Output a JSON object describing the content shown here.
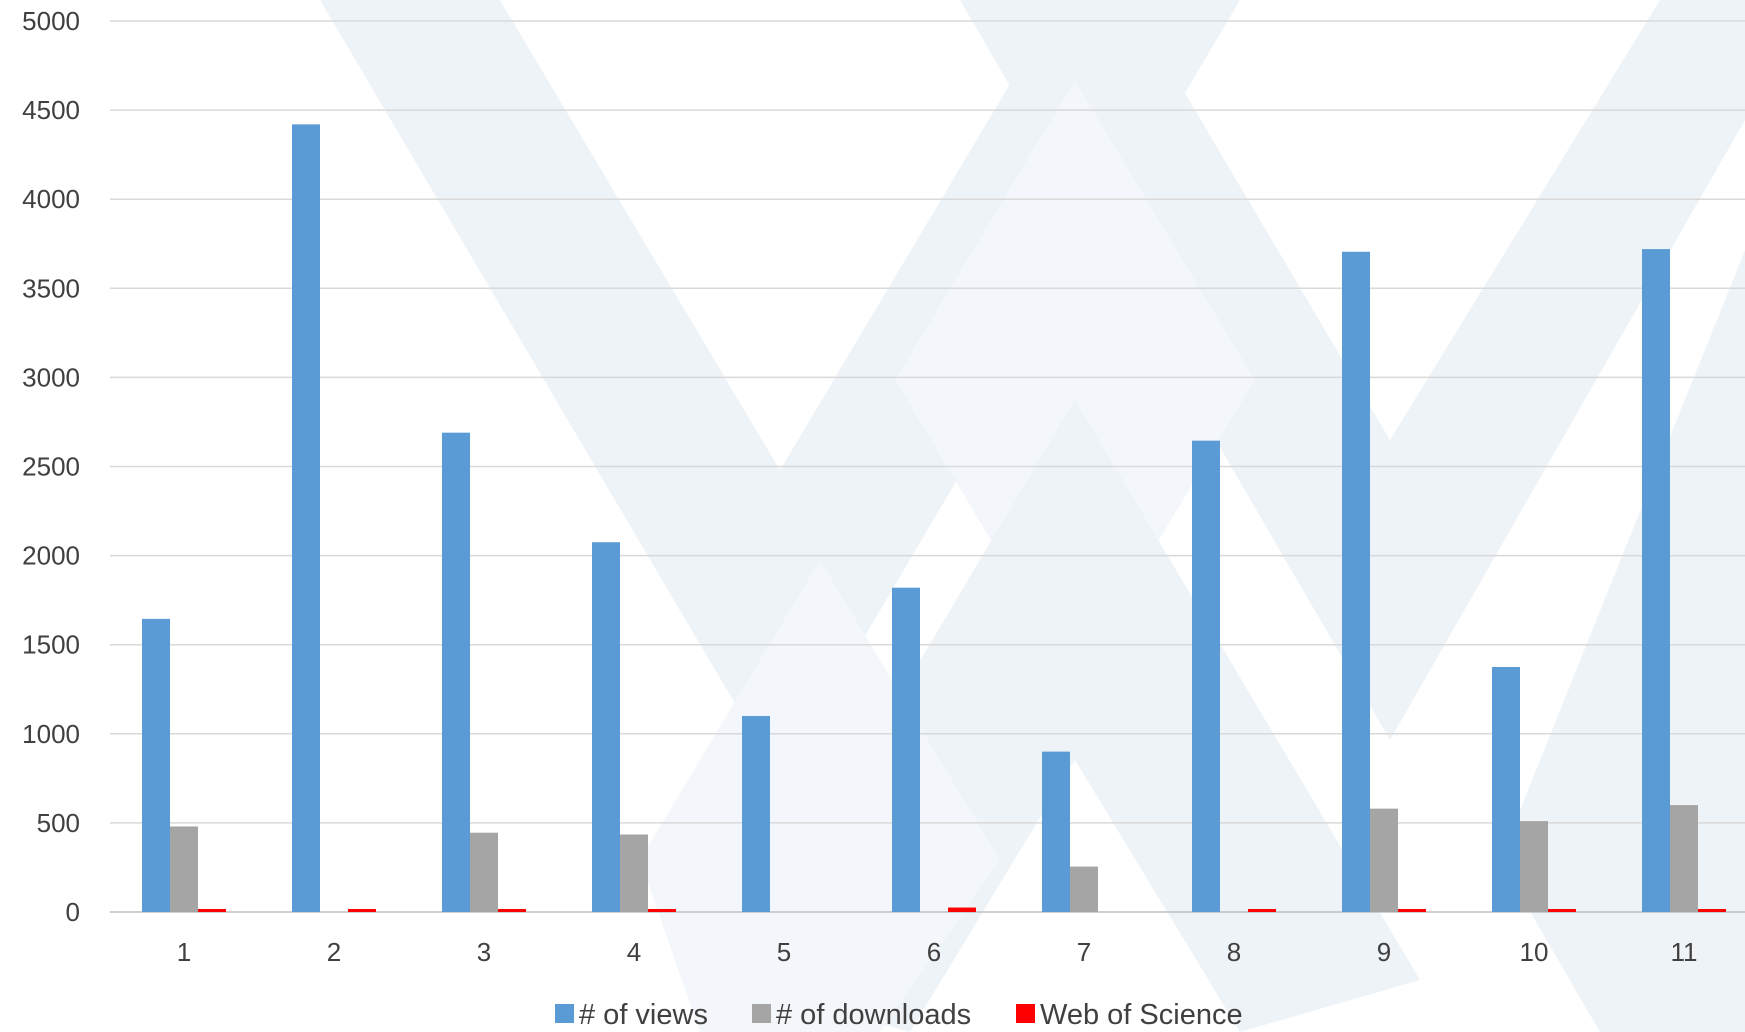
{
  "chart_data": {
    "type": "bar",
    "categories": [
      "1",
      "2",
      "3",
      "4",
      "5",
      "6",
      "7",
      "8",
      "9",
      "10",
      "11"
    ],
    "series": [
      {
        "name": "# of views",
        "color": "#5B9BD5",
        "values": [
          1645,
          4420,
          2690,
          2075,
          1100,
          1820,
          900,
          2645,
          3705,
          1375,
          3720
        ]
      },
      {
        "name": "# of downloads",
        "color": "#A5A5A5",
        "values": [
          480,
          0,
          445,
          435,
          0,
          0,
          255,
          0,
          580,
          510,
          600
        ]
      },
      {
        "name": "Web of Science",
        "color": "#FF0000",
        "values": [
          3,
          14,
          5,
          4,
          0,
          25,
          0,
          8,
          12,
          3,
          15
        ]
      }
    ],
    "yticks": [
      "0",
      "500",
      "1000",
      "1500",
      "2000",
      "2500",
      "3000",
      "3500",
      "4000",
      "4500",
      "5000"
    ],
    "ylim": [
      0,
      5000
    ],
    "grid": true,
    "legend_position": "bottom",
    "watermark": "logo-watermark"
  }
}
